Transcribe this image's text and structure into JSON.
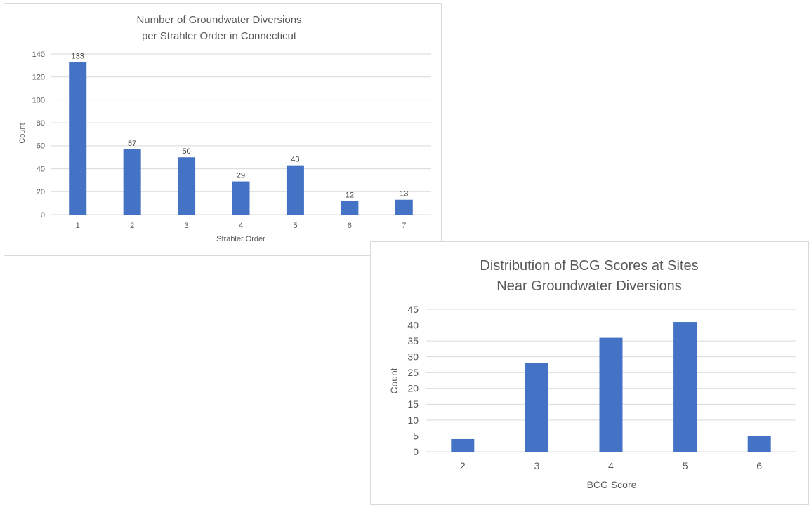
{
  "chart_data": [
    {
      "type": "bar",
      "title_lines": [
        "Number of Groundwater Diversions",
        "per Strahler Order in Connecticut"
      ],
      "xlabel": "Strahler Order",
      "ylabel": "Count",
      "categories": [
        "1",
        "2",
        "3",
        "4",
        "5",
        "6",
        "7"
      ],
      "values": [
        133,
        57,
        50,
        29,
        43,
        12,
        13
      ],
      "data_labels": [
        "133",
        "57",
        "50",
        "29",
        "43",
        "12",
        "13"
      ],
      "ylim": [
        0,
        140
      ],
      "yticks": [
        0,
        20,
        40,
        60,
        80,
        100,
        120,
        140
      ],
      "grid": true,
      "legend": "none",
      "bar_color": "#4472C4",
      "grid_color": "#d9d9d9"
    },
    {
      "type": "bar",
      "title_lines": [
        "Distribution of BCG Scores at Sites",
        "Near Groundwater Diversions"
      ],
      "xlabel": "BCG Score",
      "ylabel": "Count",
      "categories": [
        "2",
        "3",
        "4",
        "5",
        "6"
      ],
      "values": [
        4,
        28,
        36,
        41,
        5
      ],
      "ylim": [
        0,
        45
      ],
      "yticks": [
        0,
        5,
        10,
        15,
        20,
        25,
        30,
        35,
        40,
        45
      ],
      "grid": true,
      "legend": "none",
      "bar_color": "#4472C4",
      "grid_color": "#d9d9d9"
    }
  ]
}
